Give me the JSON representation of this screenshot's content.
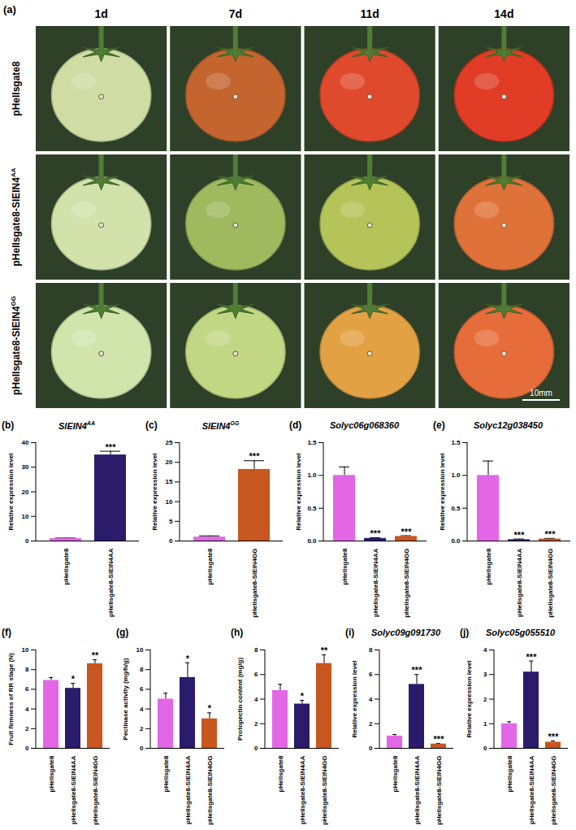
{
  "panel_a": {
    "label": "(a)",
    "columns": [
      "1d",
      "7d",
      "11d",
      "14d"
    ],
    "rows": [
      {
        "label": "pHellsgate8",
        "sup": null,
        "fruit_colors": [
          "#cfdca4",
          "#c4652f",
          "#df4a2c",
          "#e03c26"
        ]
      },
      {
        "label": "pHellsgate8-SlEIN4",
        "sup": "AA",
        "fruit_colors": [
          "#d2e2aa",
          "#9fb95e",
          "#b4c458",
          "#df7238"
        ]
      },
      {
        "label": "pHellsgate8-SlEIN4",
        "sup": "GG",
        "fruit_colors": [
          "#d0e4ac",
          "#c2d784",
          "#e2a244",
          "#e66c3a"
        ]
      }
    ],
    "scale_bar": "10mm"
  },
  "chart_data": [
    {
      "panel": "(b)",
      "type": "bar",
      "title": "SlEIN4",
      "title_sup": "AA",
      "y_label": "Relative expression level",
      "categories": [
        "pHellsgate8",
        "pHellsgate8-SlEIN4AA"
      ],
      "values": [
        1,
        35
      ],
      "errors": [
        0.2,
        1.5
      ],
      "significance": [
        null,
        "***"
      ],
      "colors": [
        "#e366e6",
        "#2b1b6b"
      ],
      "ylim": [
        0,
        40
      ],
      "yticks": [
        0,
        10,
        20,
        30,
        40
      ]
    },
    {
      "panel": "(c)",
      "type": "bar",
      "title": "SlEIN4",
      "title_sup": "GG",
      "y_label": "Relative expression level",
      "categories": [
        "pHellsgate8",
        "pHellsgate8-SlEIN4GG"
      ],
      "values": [
        1,
        18.2
      ],
      "errors": [
        0.3,
        2.2
      ],
      "significance": [
        null,
        "***"
      ],
      "colors": [
        "#e366e6",
        "#c8561f"
      ],
      "ylim": [
        0,
        25
      ],
      "yticks": [
        0,
        5,
        10,
        15,
        20,
        25
      ]
    },
    {
      "panel": "(d)",
      "type": "bar",
      "title": "Solyc06g068360",
      "title_sup": null,
      "y_label": "Relative expression level",
      "categories": [
        "pHellsgate8",
        "pHellsgate8-SlEIN4AA",
        "pHellsgate8-SlEIN4GG"
      ],
      "values": [
        1.0,
        0.04,
        0.07
      ],
      "errors": [
        0.13,
        0.01,
        0.01
      ],
      "significance": [
        null,
        "***",
        "***"
      ],
      "colors": [
        "#e366e6",
        "#2b1b6b",
        "#c8561f"
      ],
      "ylim": [
        0,
        1.5
      ],
      "yticks": [
        {
          "value": 0,
          "label": "0.0"
        },
        0.5,
        {
          "value": 1,
          "label": "1.0"
        },
        1.5
      ]
    },
    {
      "panel": "(e)",
      "type": "bar",
      "title": "Solyc12g038450",
      "title_sup": null,
      "y_label": "Relative expression level",
      "categories": [
        "pHellsgate8",
        "pHellsgate8-SlEIN4AA",
        "pHellsgate8-SlEIN4GG"
      ],
      "values": [
        1.0,
        0.02,
        0.03
      ],
      "errors": [
        0.22,
        0.01,
        0.01
      ],
      "significance": [
        null,
        "***",
        "***"
      ],
      "colors": [
        "#e366e6",
        "#2b1b6b",
        "#c8561f"
      ],
      "ylim": [
        0,
        1.5
      ],
      "yticks": [
        {
          "value": 0,
          "label": "0.0"
        },
        0.5,
        {
          "value": 1,
          "label": "1.0"
        },
        1.5
      ]
    },
    {
      "panel": "(f)",
      "type": "bar",
      "title": null,
      "title_sup": null,
      "y_label": "Fruit firmness of RR stage (N)",
      "categories": [
        "pHellsgate8",
        "pHellsgate8-SlEIN4AA",
        "pHellsgate8-SlEIN4GG"
      ],
      "values": [
        6.9,
        6.1,
        8.6
      ],
      "errors": [
        0.3,
        0.5,
        0.4
      ],
      "significance": [
        null,
        "*",
        "**"
      ],
      "colors": [
        "#e366e6",
        "#2b1b6b",
        "#c8561f"
      ],
      "ylim": [
        0,
        10
      ],
      "yticks": [
        0,
        2,
        4,
        6,
        8,
        10
      ]
    },
    {
      "panel": "(g)",
      "type": "bar",
      "title": null,
      "title_sup": null,
      "y_label": "Pectinase activity (mg/h/g)",
      "categories": [
        "pHellsgate8",
        "pHellsgate8-SlEIN4AA",
        "pHellsgate8-SlEIN4GG"
      ],
      "values": [
        5.0,
        7.2,
        3.0
      ],
      "errors": [
        0.6,
        1.5,
        0.6
      ],
      "significance": [
        null,
        "*",
        "*"
      ],
      "colors": [
        "#e366e6",
        "#2b1b6b",
        "#c8561f"
      ],
      "ylim": [
        0,
        10
      ],
      "yticks": [
        0,
        2,
        4,
        6,
        8,
        10
      ]
    },
    {
      "panel": "(h)",
      "type": "bar",
      "title": null,
      "title_sup": null,
      "y_label": "Protopectin content (mg/g)",
      "categories": [
        "pHellsgate8",
        "pHellsgate8-SlEIN4AA",
        "pHellsgate8-SlEIN4GG"
      ],
      "values": [
        4.7,
        3.6,
        6.9
      ],
      "errors": [
        0.5,
        0.3,
        0.7
      ],
      "significance": [
        null,
        "*",
        "**"
      ],
      "colors": [
        "#e366e6",
        "#2b1b6b",
        "#c8561f"
      ],
      "ylim": [
        0,
        8
      ],
      "yticks": [
        0,
        2,
        4,
        6,
        8
      ]
    },
    {
      "panel": "(i)",
      "type": "bar",
      "title": "Solyc09g091730",
      "title_sup": null,
      "y_label": "Relative expression level",
      "categories": [
        "pHellsgate8",
        "pHellsgate8-SlEIN4AA",
        "pHellsgate8-SlEIN4GG"
      ],
      "values": [
        1.0,
        5.2,
        0.35
      ],
      "errors": [
        0.12,
        0.8,
        0.05
      ],
      "significance": [
        null,
        "***",
        "***"
      ],
      "colors": [
        "#e366e6",
        "#2b1b6b",
        "#c8561f"
      ],
      "ylim": [
        0,
        8
      ],
      "yticks": [
        0,
        2,
        4,
        6,
        8
      ]
    },
    {
      "panel": "(j)",
      "type": "bar",
      "title": "Solyc05g055510",
      "title_sup": null,
      "y_label": "Relative expression level",
      "categories": [
        "pHellsgate8",
        "pHellsgate8-SlEIN4AA",
        "pHellsgate8-SlEIN4GG"
      ],
      "values": [
        1.0,
        3.1,
        0.25
      ],
      "errors": [
        0.08,
        0.45,
        0.05
      ],
      "significance": [
        null,
        "***",
        "***"
      ],
      "colors": [
        "#e366e6",
        "#2b1b6b",
        "#c8561f"
      ],
      "ylim": [
        0,
        4
      ],
      "yticks": [
        0,
        1,
        2,
        3,
        4
      ]
    }
  ]
}
